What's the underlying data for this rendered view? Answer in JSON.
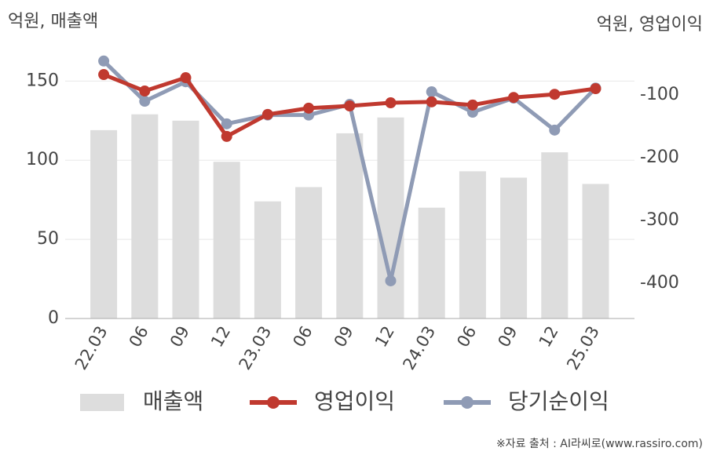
{
  "chart_data": {
    "type": "combo",
    "ylabel": "억원, 매출액",
    "y2label": "억원, 영업이익",
    "categories": [
      "22.03",
      "06",
      "09",
      "12",
      "23.03",
      "06",
      "09",
      "12",
      "24.03",
      "06",
      "09",
      "12",
      "25.03"
    ],
    "series": [
      {
        "name": "매출액",
        "type": "bar",
        "color": "#dddddd",
        "values": [
          119,
          129,
          125,
          99,
          74,
          83,
          117,
          127,
          70,
          93,
          89,
          105,
          85
        ]
      },
      {
        "name": "영업이익",
        "type": "line",
        "axis": "y2",
        "color": "#c0392f",
        "values": [
          -67.5,
          -93.75,
          -72.5,
          -166,
          -131,
          -121,
          -117.5,
          -112.5,
          -111,
          -116,
          -104,
          -99,
          -90
        ]
      },
      {
        "name": "당기순이익",
        "type": "line",
        "axis": "y2",
        "color": "#8f9bb5",
        "values": [
          -46,
          -110,
          -79,
          -146,
          -132,
          -132,
          -115,
          -396,
          -95,
          -127.5,
          -105,
          -156,
          -89
        ]
      }
    ],
    "ylim": [
      0,
      169
    ],
    "yticks": [
      0,
      50,
      100,
      150
    ],
    "y2lim": [
      -456,
      -30
    ],
    "y2ticks": [
      -100,
      -200,
      -300,
      -400
    ],
    "grid": true,
    "source": "※자료 출처 : AI라씨로(www.rassiro.com)"
  }
}
